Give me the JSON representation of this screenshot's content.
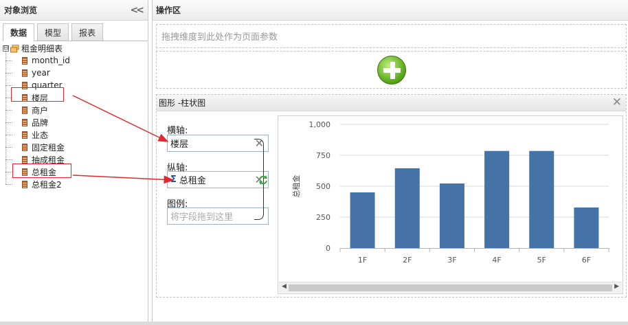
{
  "left_panel": {
    "title": "对象浏览",
    "collapse_icon": "double-chevron-left-icon",
    "tabs": [
      {
        "label": "数据",
        "active": true
      },
      {
        "label": "模型",
        "active": false
      },
      {
        "label": "报表",
        "active": false
      }
    ],
    "tree": {
      "toggle": "⊟",
      "root_label": "租金明细表",
      "fields": [
        "month_id",
        "year",
        "quarter",
        "楼层",
        "商户",
        "品牌",
        "业态",
        "固定租金",
        "抽成租金",
        "总租金",
        "总租金2"
      ]
    }
  },
  "right_panel": {
    "title": "操作区",
    "page_param_placeholder": "拖拽维度到此处作为页面参数",
    "add_icon": "green-plus-circle-icon",
    "chart_panel": {
      "title": "图形 -柱状图",
      "close_icon": "close-icon",
      "x_axis_label": "横轴:",
      "x_axis_field": "楼层",
      "y_axis_label": "纵轴:",
      "y_axis_sigma": "Σ",
      "y_axis_field": "总租金",
      "legend_label": "图例:",
      "legend_placeholder": "将字段拖到这里",
      "remove_glyph": "✕",
      "swap_icon": "refresh-swap-icon"
    }
  },
  "chart_data": {
    "type": "bar",
    "categories": [
      "1F",
      "2F",
      "3F",
      "4F",
      "5F",
      "6F"
    ],
    "values": [
      450,
      645,
      522,
      785,
      785,
      328
    ],
    "ylabel": "总租金",
    "xlabel": "",
    "ylim": [
      0,
      1000
    ],
    "yticks": [
      0,
      250,
      500,
      750,
      1000
    ],
    "ytick_labels": [
      "0",
      "250",
      "500",
      "750",
      "1,000"
    ],
    "bar_color": "#4572a7",
    "grid": true
  },
  "colors": {
    "highlight": "#e0292e",
    "arrow": "#e0292e"
  }
}
